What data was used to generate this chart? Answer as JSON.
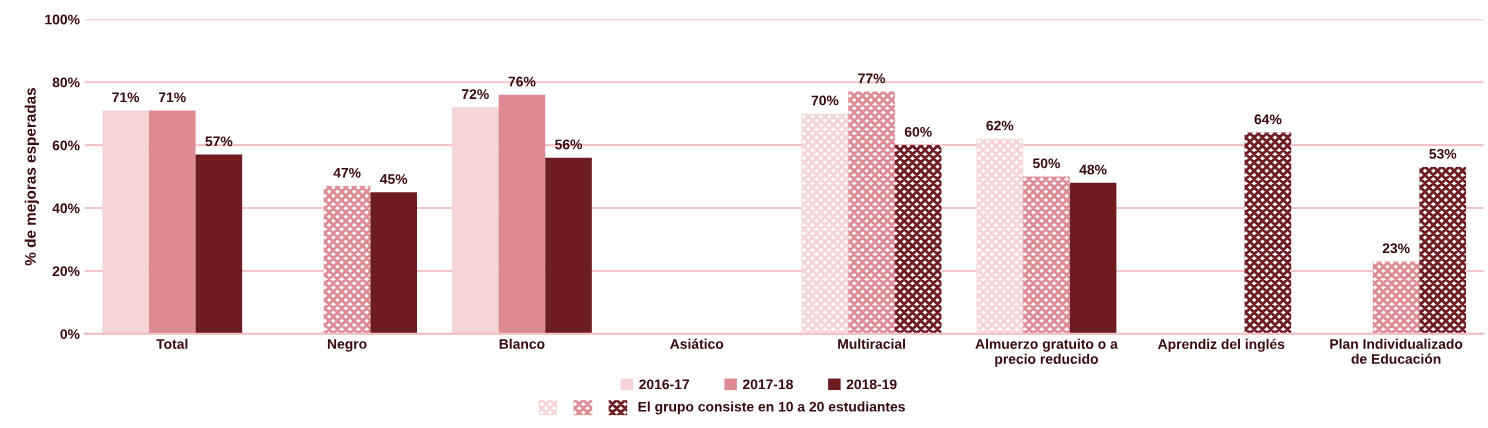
{
  "chart_data": {
    "type": "bar",
    "ylabel": "% de mejoras esperadas",
    "categories": [
      "Total",
      "Negro",
      "Blanco",
      "Asiático",
      "Multiracial",
      "Almuerzo gratuito o a\nprecio reducido",
      "Aprendiz del inglés",
      "Plan Individualizado\nde Educación"
    ],
    "series": [
      {
        "name": "2016-17",
        "color": "#f5d5d8",
        "values": [
          71,
          null,
          72,
          null,
          70,
          62,
          null,
          null
        ],
        "value_labels": [
          "71%",
          null,
          "72%",
          null,
          "70%",
          "62%",
          null,
          null
        ],
        "colors": [
          "#f5d5d8",
          "#f5d5d8",
          "#f5d5d8",
          "#f5d5d8",
          "#faeaeb",
          "#faeaeb",
          "#f5d5d8",
          "#f5d5d8"
        ]
      },
      {
        "name": "2017-18",
        "color": "#de8a92",
        "values": [
          71,
          47,
          76,
          null,
          77,
          50,
          null,
          23
        ],
        "value_labels": [
          "71%",
          "47%",
          "76%",
          null,
          "77%",
          "50%",
          null,
          "23%"
        ],
        "colors": [
          "#de8a92",
          "#efc5c8",
          "#de8a92",
          "#de8a92",
          "#efc5c8",
          "#efc5c8",
          "#de8a92",
          "#efc5c8"
        ]
      },
      {
        "name": "2018-19",
        "color": "#6e1c22",
        "values": [
          57,
          45,
          56,
          null,
          60,
          48,
          64,
          53
        ],
        "value_labels": [
          "57%",
          "45%",
          "56%",
          null,
          "60%",
          "48%",
          "64%",
          "53%"
        ],
        "colors": [
          "#6e1c22",
          "#6e1c22",
          "#6e1c22",
          "#6e1c22",
          "#b78e91",
          "#6e1c22",
          "#b78e91",
          "#b78e91"
        ]
      }
    ],
    "ylim": [
      0,
      100
    ],
    "yticks": [
      {
        "value": 0,
        "label": "0%"
      },
      {
        "value": 20,
        "label": "20%"
      },
      {
        "value": 40,
        "label": "40%"
      },
      {
        "value": 60,
        "label": "60%"
      },
      {
        "value": 80,
        "label": "80%"
      },
      {
        "value": 100,
        "label": "100%"
      }
    ],
    "grid": "y",
    "legend": "bottom",
    "annotations": [
      "El grupo consiste en 10 a 20 estudiantes"
    ]
  }
}
